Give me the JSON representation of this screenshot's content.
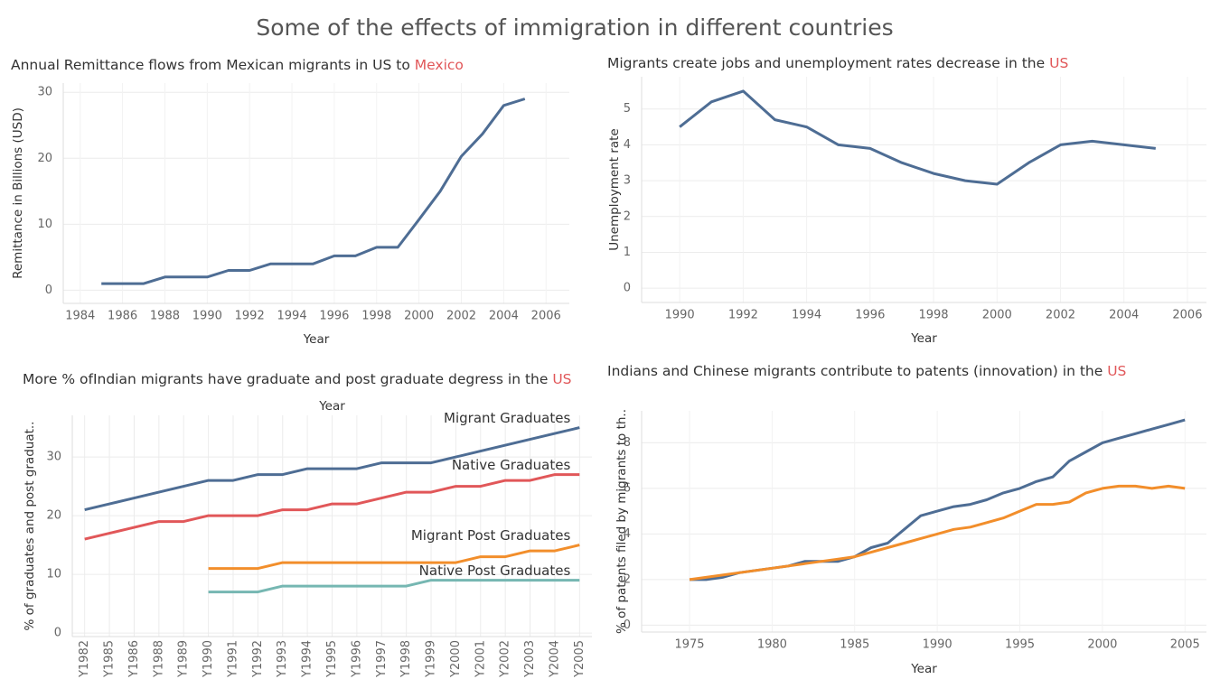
{
  "title": "Some of the effects of immigration in different countries",
  "chart_data": [
    {
      "type": "line",
      "title": "Annual Remittance flows from Mexican migrants in US to ",
      "title_highlight": "Mexico",
      "xlabel": "Year",
      "ylabel": "Remittance in Billions (USD)",
      "x": [
        1985,
        1986,
        1987,
        1988,
        1989,
        1990,
        1991,
        1992,
        1993,
        1994,
        1995,
        1996,
        1997,
        1998,
        1999,
        2000,
        2001,
        2002,
        2003,
        2004,
        2005
      ],
      "series": [
        {
          "color": "#4e6d94",
          "values": [
            1,
            1,
            1,
            2,
            2,
            2,
            3,
            3,
            4,
            4,
            4,
            5.2,
            5.2,
            6.5,
            6.5,
            10.7,
            15,
            20.3,
            23.7,
            28,
            29
          ]
        }
      ],
      "xlim": [
        1983.2,
        2007.1
      ],
      "xticks": [
        1984,
        1986,
        1988,
        1990,
        1992,
        1994,
        1996,
        1998,
        2000,
        2002,
        2004,
        2006
      ],
      "ylim": [
        -2,
        31.4
      ],
      "yticks": [
        0,
        10,
        20,
        30
      ],
      "grid": true
    },
    {
      "type": "line",
      "title": "Migrants create jobs and unemployment rates decrease in  the ",
      "title_highlight": "US",
      "xlabel": "Year",
      "ylabel": "Unemployment rate",
      "x": [
        1990,
        1991,
        1992,
        1993,
        1994,
        1995,
        1996,
        1997,
        1998,
        1999,
        2000,
        2001,
        2002,
        2003,
        2004,
        2005
      ],
      "series": [
        {
          "color": "#4e6d94",
          "values": [
            4.5,
            5.2,
            5.5,
            4.7,
            4.5,
            4.0,
            3.9,
            3.5,
            3.2,
            3.0,
            2.9,
            3.5,
            4.0,
            4.1,
            4.0,
            3.9
          ]
        }
      ],
      "xlim": [
        1988.8,
        2006.6
      ],
      "xticks": [
        1990,
        1992,
        1994,
        1996,
        1998,
        2000,
        2002,
        2004,
        2006
      ],
      "ylim": [
        -0.4,
        5.9
      ],
      "yticks": [
        0,
        1,
        2,
        3,
        4,
        5
      ],
      "grid": true
    },
    {
      "type": "line",
      "title": "More % ofIndian migrants have graduate and post graduate degress in the ",
      "title_highlight": "US",
      "xlabel": "Year",
      "xlabel_position": "top",
      "ylabel": "% of graduates and post graduat..",
      "categories": [
        "Y1982",
        "Y1985",
        "Y1986",
        "Y1988",
        "Y1989",
        "Y1990",
        "Y1991",
        "Y1992",
        "Y1993",
        "Y1994",
        "Y1995",
        "Y1996",
        "Y1997",
        "Y1998",
        "Y1999",
        "Y2000",
        "Y2001",
        "Y2002",
        "Y2003",
        "Y2004",
        "Y2005"
      ],
      "series": [
        {
          "name": "Migrant Graduates",
          "color": "#4e6d94",
          "values": [
            21,
            22,
            23,
            24,
            25,
            26,
            26,
            27,
            27,
            28,
            28,
            28,
            29,
            29,
            29,
            30,
            31,
            32,
            33,
            34,
            35
          ]
        },
        {
          "name": "Native Graduates",
          "color": "#e15759",
          "values": [
            16,
            17,
            18,
            19,
            19,
            20,
            20,
            20,
            21,
            21,
            22,
            22,
            23,
            24,
            24,
            25,
            25,
            26,
            26,
            27,
            27
          ]
        },
        {
          "name": "Migrant Post Graduates",
          "color": "#f28e2b",
          "values": [
            null,
            null,
            null,
            null,
            null,
            11,
            11,
            11,
            12,
            12,
            12,
            12,
            12,
            12,
            12,
            12,
            13,
            13,
            14,
            14,
            15
          ]
        },
        {
          "name": "Native Post Graduates",
          "color": "#76b7b2",
          "values": [
            null,
            null,
            null,
            null,
            null,
            7,
            7,
            7,
            8,
            8,
            8,
            8,
            8,
            8,
            9,
            9,
            9,
            9,
            9,
            9,
            9
          ]
        }
      ],
      "direct_labels": true,
      "ylim": [
        -0.6,
        37.1
      ],
      "yticks": [
        0,
        10,
        20,
        30
      ],
      "grid": true
    },
    {
      "type": "line",
      "title": "Indians and Chinese migrants contribute to patents (innovation) in the ",
      "title_highlight": "US",
      "xlabel": "Year",
      "ylabel": "% of patents filed by migrants to th..",
      "x": [
        1975,
        1976,
        1977,
        1978,
        1979,
        1980,
        1981,
        1982,
        1983,
        1984,
        1985,
        1986,
        1987,
        1988,
        1989,
        1990,
        1991,
        1992,
        1993,
        1994,
        1995,
        1996,
        1997,
        1998,
        1999,
        2000,
        2001,
        2002,
        2003,
        2004,
        2005
      ],
      "series": [
        {
          "color": "#4e6d94",
          "values": [
            2,
            2,
            2.1,
            2.3,
            2.4,
            2.5,
            2.6,
            2.8,
            2.8,
            2.8,
            3.0,
            3.4,
            3.6,
            4.2,
            4.8,
            5.0,
            5.2,
            5.3,
            5.5,
            5.8,
            6.0,
            6.3,
            6.5,
            7.2,
            7.6,
            8.0,
            8.2,
            8.4,
            8.6,
            8.8,
            9.0
          ]
        },
        {
          "color": "#f28e2b",
          "values": [
            2,
            2.1,
            2.2,
            2.3,
            2.4,
            2.5,
            2.6,
            2.7,
            2.8,
            2.9,
            3.0,
            3.2,
            3.4,
            3.6,
            3.8,
            4.0,
            4.2,
            4.3,
            4.5,
            4.7,
            5.0,
            5.3,
            5.3,
            5.4,
            5.8,
            6.0,
            6.1,
            6.1,
            6.0,
            6.1,
            6.0
          ]
        }
      ],
      "xlim": [
        1972.1,
        2006.3
      ],
      "xticks": [
        1975,
        1980,
        1985,
        1990,
        1995,
        2000,
        2005
      ],
      "ylim": [
        -0.3,
        9.4
      ],
      "yticks": [
        0,
        2,
        4,
        6,
        8
      ],
      "grid": true
    }
  ]
}
